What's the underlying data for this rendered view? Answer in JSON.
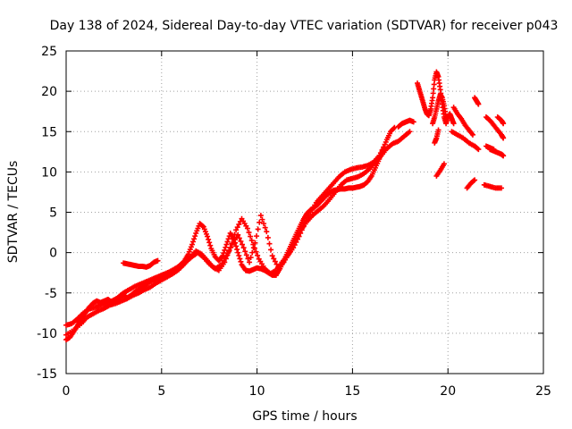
{
  "chart_data": {
    "type": "scatter",
    "title": "Day 138 of 2024, Sidereal Day-to-day VTEC variation (SDTVAR) for receiver p043",
    "xlabel": "GPS time / hours",
    "ylabel": "SDTVAR / TECUs",
    "xlim": [
      0,
      25
    ],
    "ylim": [
      -15,
      25
    ],
    "xticks": [
      "0",
      "5",
      "10",
      "15",
      "20",
      "25"
    ],
    "yticks": [
      "-15",
      "-10",
      "-5",
      "0",
      "5",
      "10",
      "15",
      "20",
      "25"
    ],
    "grid": true,
    "marker": "+",
    "color": "#ff0000",
    "series": [
      {
        "points": [
          [
            0.0,
            -10.8
          ],
          [
            0.2,
            -10.5
          ],
          [
            0.4,
            -9.8
          ],
          [
            0.6,
            -9.0
          ],
          [
            0.8,
            -8.2
          ],
          [
            1.0,
            -7.5
          ],
          [
            1.2,
            -6.8
          ],
          [
            1.4,
            -6.3
          ],
          [
            1.6,
            -6.0
          ],
          [
            1.8,
            -6.2
          ],
          [
            2.0,
            -6.0
          ],
          [
            2.2,
            -5.8
          ],
          [
            2.4,
            -6.2
          ],
          [
            2.6,
            -5.8
          ],
          [
            2.8,
            -5.6
          ],
          [
            3.0,
            -5.3
          ],
          [
            3.2,
            -5.6
          ],
          [
            3.4,
            -5.3
          ],
          [
            3.6,
            -4.9
          ],
          [
            3.8,
            -4.6
          ],
          [
            4.0,
            -4.3
          ],
          [
            4.2,
            -3.9
          ],
          [
            4.4,
            -3.6
          ],
          [
            4.6,
            -3.3
          ],
          [
            4.8,
            -3.1
          ],
          [
            5.0,
            -2.9
          ],
          [
            5.2,
            -2.7
          ],
          [
            5.4,
            -2.5
          ],
          [
            5.6,
            -2.2
          ],
          [
            5.8,
            -1.9
          ],
          [
            6.0,
            -1.5
          ],
          [
            6.2,
            -1.0
          ],
          [
            6.4,
            -0.2
          ],
          [
            6.6,
            1.0
          ],
          [
            6.8,
            2.4
          ],
          [
            7.0,
            3.6
          ],
          [
            7.2,
            3.2
          ],
          [
            7.4,
            2.0
          ],
          [
            7.6,
            0.5
          ],
          [
            7.8,
            -0.5
          ],
          [
            8.0,
            -1.0
          ],
          [
            8.2,
            -0.4
          ],
          [
            8.4,
            1.0
          ],
          [
            8.6,
            2.4
          ],
          [
            8.8,
            1.6
          ],
          [
            9.0,
            0.0
          ],
          [
            9.2,
            -1.5
          ],
          [
            9.4,
            -2.2
          ],
          [
            9.6,
            -2.3
          ],
          [
            9.8,
            -2.1
          ],
          [
            10.0,
            -1.9
          ],
          [
            10.2,
            -2.0
          ],
          [
            10.4,
            -2.2
          ],
          [
            10.6,
            -2.5
          ],
          [
            10.8,
            -2.8
          ],
          [
            11.0,
            -2.8
          ],
          [
            11.2,
            -2.0
          ],
          [
            11.4,
            -1.0
          ],
          [
            11.6,
            0.0
          ],
          [
            11.8,
            1.0
          ],
          [
            12.0,
            2.0
          ],
          [
            12.2,
            3.0
          ],
          [
            12.4,
            4.0
          ],
          [
            12.6,
            4.8
          ],
          [
            12.8,
            5.3
          ],
          [
            13.0,
            5.6
          ],
          [
            13.2,
            6.0
          ],
          [
            13.4,
            6.5
          ],
          [
            13.6,
            7.0
          ],
          [
            13.8,
            7.4
          ],
          [
            14.0,
            7.7
          ],
          [
            14.2,
            7.8
          ],
          [
            14.4,
            7.9
          ],
          [
            14.6,
            7.9
          ],
          [
            14.8,
            8.0
          ],
          [
            15.0,
            8.0
          ],
          [
            15.2,
            8.1
          ],
          [
            15.4,
            8.2
          ],
          [
            15.6,
            8.4
          ],
          [
            15.8,
            8.8
          ],
          [
            16.0,
            9.5
          ],
          [
            16.2,
            10.5
          ],
          [
            16.4,
            11.6
          ],
          [
            16.6,
            12.8
          ],
          [
            16.8,
            14.0
          ],
          [
            17.0,
            15.0
          ],
          [
            17.2,
            15.5
          ]
        ]
      },
      {
        "points": [
          [
            0.0,
            -9.0
          ],
          [
            0.3,
            -8.8
          ],
          [
            0.6,
            -8.2
          ],
          [
            0.9,
            -7.5
          ],
          [
            1.2,
            -7.0
          ],
          [
            1.5,
            -6.8
          ],
          [
            1.8,
            -6.5
          ],
          [
            2.1,
            -6.2
          ],
          [
            2.4,
            -6.0
          ],
          [
            2.7,
            -5.6
          ],
          [
            3.0,
            -5.0
          ],
          [
            3.3,
            -4.6
          ],
          [
            3.6,
            -4.2
          ],
          [
            3.9,
            -3.9
          ],
          [
            4.2,
            -3.6
          ],
          [
            4.5,
            -3.3
          ],
          [
            4.8,
            -3.0
          ],
          [
            5.1,
            -2.7
          ],
          [
            5.4,
            -2.4
          ],
          [
            5.7,
            -2.0
          ],
          [
            6.0,
            -1.6
          ],
          [
            6.3,
            -1.1
          ],
          [
            6.6,
            -0.5
          ],
          [
            6.9,
            0.0
          ],
          [
            7.2,
            -0.6
          ],
          [
            7.5,
            -1.4
          ],
          [
            7.8,
            -2.0
          ],
          [
            8.1,
            -1.6
          ],
          [
            8.4,
            -0.4
          ],
          [
            8.7,
            1.0
          ],
          [
            9.0,
            2.2
          ],
          [
            9.3,
            0.6
          ],
          [
            9.6,
            -1.2
          ],
          [
            9.9,
            1.2
          ],
          [
            10.2,
            4.6
          ],
          [
            10.5,
            2.6
          ],
          [
            10.8,
            -0.4
          ],
          [
            11.1,
            -1.8
          ],
          [
            11.4,
            -1.2
          ],
          [
            11.7,
            0.0
          ],
          [
            12.0,
            1.4
          ],
          [
            12.3,
            2.8
          ],
          [
            12.6,
            3.8
          ],
          [
            12.9,
            4.6
          ],
          [
            13.2,
            5.2
          ],
          [
            13.5,
            5.8
          ],
          [
            13.8,
            6.6
          ],
          [
            14.1,
            7.5
          ],
          [
            14.4,
            8.4
          ],
          [
            14.7,
            9.0
          ],
          [
            15.0,
            9.2
          ],
          [
            15.3,
            9.4
          ],
          [
            15.6,
            9.8
          ],
          [
            15.9,
            10.4
          ],
          [
            16.2,
            11.2
          ],
          [
            16.5,
            12.0
          ],
          [
            16.8,
            12.9
          ],
          [
            17.1,
            13.5
          ],
          [
            17.4,
            13.8
          ],
          [
            17.7,
            14.4
          ],
          [
            18.0,
            15.0
          ]
        ]
      },
      {
        "points": [
          [
            0.0,
            -10.2
          ],
          [
            0.4,
            -9.6
          ],
          [
            0.8,
            -8.8
          ],
          [
            1.1,
            -8.0
          ],
          [
            1.4,
            -7.6
          ],
          [
            1.7,
            -7.2
          ],
          [
            2.0,
            -6.9
          ],
          [
            2.3,
            -6.5
          ],
          [
            2.6,
            -6.3
          ],
          [
            2.9,
            -6.0
          ],
          [
            3.2,
            -5.7
          ],
          [
            3.5,
            -5.3
          ],
          [
            3.8,
            -5.0
          ],
          [
            4.1,
            -4.6
          ],
          [
            4.4,
            -4.3
          ],
          [
            4.7,
            -3.8
          ],
          [
            5.0,
            -3.4
          ],
          [
            5.3,
            -3.0
          ],
          [
            5.6,
            -2.6
          ],
          [
            5.9,
            -2.1
          ],
          [
            6.2,
            -1.4
          ],
          [
            6.5,
            -0.6
          ],
          [
            6.8,
            0.2
          ],
          [
            7.1,
            -0.2
          ],
          [
            7.4,
            -1.0
          ],
          [
            7.7,
            -1.8
          ],
          [
            8.0,
            -2.2
          ],
          [
            8.3,
            -1.2
          ],
          [
            8.6,
            0.6
          ],
          [
            8.9,
            2.8
          ],
          [
            9.2,
            4.2
          ],
          [
            9.5,
            3.0
          ],
          [
            9.8,
            1.0
          ],
          [
            10.1,
            -0.8
          ],
          [
            10.4,
            -2.0
          ],
          [
            10.7,
            -2.6
          ],
          [
            11.0,
            -2.2
          ],
          [
            11.3,
            -1.2
          ],
          [
            11.6,
            -0.4
          ],
          [
            11.9,
            0.6
          ],
          [
            12.2,
            2.0
          ],
          [
            12.5,
            3.6
          ],
          [
            12.8,
            5.0
          ],
          [
            13.1,
            6.2
          ],
          [
            13.4,
            7.0
          ],
          [
            13.7,
            7.8
          ],
          [
            14.0,
            8.6
          ],
          [
            14.3,
            9.4
          ],
          [
            14.6,
            10.0
          ],
          [
            14.9,
            10.3
          ],
          [
            15.2,
            10.5
          ],
          [
            15.5,
            10.6
          ],
          [
            15.8,
            10.8
          ],
          [
            16.1,
            11.2
          ],
          [
            16.4,
            12.0
          ],
          [
            16.7,
            13.4
          ]
        ]
      },
      {
        "points": [
          [
            3.0,
            -1.3
          ],
          [
            3.2,
            -1.4
          ],
          [
            3.4,
            -1.5
          ],
          [
            3.6,
            -1.6
          ],
          [
            3.8,
            -1.7
          ],
          [
            4.0,
            -1.7
          ],
          [
            4.2,
            -1.8
          ],
          [
            4.4,
            -1.6
          ],
          [
            4.6,
            -1.2
          ],
          [
            4.8,
            -1.0
          ]
        ]
      },
      {
        "points": [
          [
            18.4,
            21.0
          ],
          [
            18.5,
            20.2
          ],
          [
            18.6,
            19.4
          ],
          [
            18.7,
            18.6
          ],
          [
            18.8,
            17.8
          ],
          [
            18.9,
            17.2
          ],
          [
            19.0,
            17.0
          ],
          [
            19.1,
            17.8
          ],
          [
            19.2,
            19.2
          ],
          [
            19.3,
            21.4
          ],
          [
            19.4,
            22.4
          ],
          [
            19.5,
            21.8
          ],
          [
            19.6,
            20.2
          ],
          [
            19.7,
            18.4
          ],
          [
            19.8,
            16.8
          ],
          [
            19.9,
            16.0
          ],
          [
            20.0,
            16.8
          ],
          [
            20.1,
            17.2
          ],
          [
            20.2,
            16.6
          ],
          [
            20.3,
            16.0
          ]
        ]
      },
      {
        "points": [
          [
            19.2,
            16.0
          ],
          [
            19.3,
            16.8
          ],
          [
            19.4,
            17.8
          ],
          [
            19.5,
            18.8
          ],
          [
            19.6,
            19.6
          ],
          [
            19.7,
            19.2
          ],
          [
            19.8,
            18.2
          ],
          [
            19.9,
            16.8
          ]
        ]
      },
      {
        "points": [
          [
            20.2,
            15.0
          ],
          [
            20.5,
            14.6
          ],
          [
            20.8,
            14.2
          ],
          [
            21.1,
            13.6
          ],
          [
            21.4,
            13.2
          ],
          [
            21.6,
            12.8
          ]
        ]
      },
      {
        "points": [
          [
            20.3,
            18.0
          ],
          [
            20.5,
            17.2
          ],
          [
            20.7,
            16.6
          ],
          [
            20.9,
            15.8
          ],
          [
            21.1,
            15.2
          ],
          [
            21.3,
            14.6
          ]
        ]
      },
      {
        "points": [
          [
            21.4,
            19.2
          ],
          [
            21.5,
            18.8
          ],
          [
            21.6,
            18.4
          ]
        ]
      },
      {
        "points": [
          [
            22.0,
            16.8
          ],
          [
            22.2,
            16.4
          ],
          [
            22.4,
            15.8
          ],
          [
            22.6,
            15.2
          ],
          [
            22.8,
            14.6
          ],
          [
            22.9,
            14.2
          ]
        ]
      },
      {
        "points": [
          [
            22.2,
            12.8
          ],
          [
            22.4,
            12.6
          ],
          [
            22.6,
            12.4
          ],
          [
            22.8,
            12.2
          ],
          [
            22.9,
            12.0
          ]
        ]
      },
      {
        "points": [
          [
            22.0,
            13.2
          ],
          [
            22.2,
            13.0
          ],
          [
            22.4,
            12.8
          ]
        ]
      },
      {
        "points": [
          [
            22.6,
            16.8
          ],
          [
            22.8,
            16.4
          ],
          [
            22.9,
            16.0
          ]
        ]
      },
      {
        "points": [
          [
            21.9,
            8.4
          ],
          [
            22.2,
            8.2
          ],
          [
            22.5,
            8.0
          ],
          [
            22.8,
            8.0
          ]
        ]
      },
      {
        "points": [
          [
            21.0,
            8.0
          ],
          [
            21.2,
            8.6
          ],
          [
            21.4,
            9.0
          ]
        ]
      },
      {
        "points": [
          [
            19.3,
            13.6
          ],
          [
            19.4,
            14.2
          ],
          [
            19.5,
            15.2
          ]
        ]
      },
      {
        "points": [
          [
            19.4,
            9.5
          ],
          [
            19.6,
            10.2
          ],
          [
            19.8,
            11.0
          ]
        ]
      },
      {
        "points": [
          [
            17.4,
            15.6
          ],
          [
            17.6,
            16.0
          ],
          [
            17.8,
            16.2
          ],
          [
            18.0,
            16.4
          ],
          [
            18.2,
            16.2
          ]
        ]
      }
    ]
  }
}
